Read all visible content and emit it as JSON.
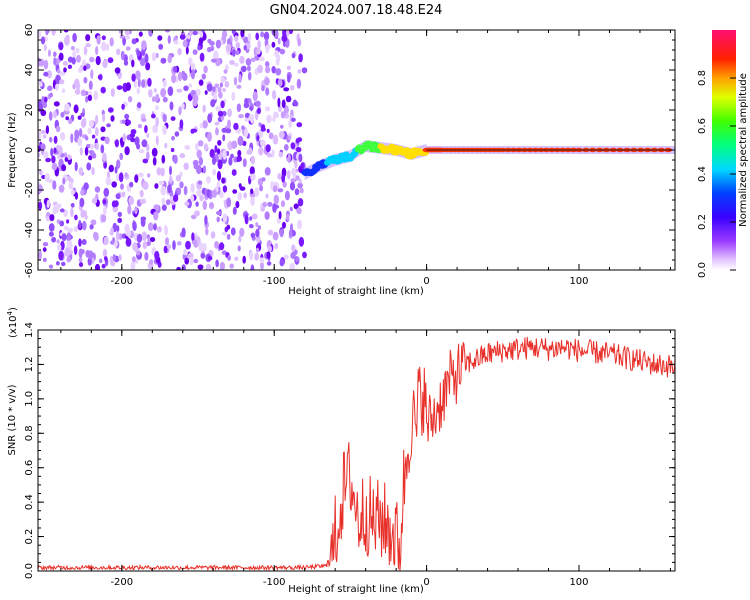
{
  "title": "GN04.2024.007.18.48.E24",
  "chart_data": [
    {
      "type": "heatmap",
      "xlabel": "Height of straight line (km)",
      "ylabel": "Frequency (Hz)",
      "xlim": [
        -255,
        163
      ],
      "ylim": [
        -60,
        60
      ],
      "xticks": [
        -200,
        -100,
        0,
        100
      ],
      "xtick_labels": [
        "-200",
        "-100",
        "0",
        "100"
      ],
      "yticks": [
        -60,
        -40,
        -20,
        0,
        20,
        40,
        60
      ],
      "ytick_labels": [
        "-60",
        "-40",
        "-20",
        "0",
        "20",
        "40",
        "60"
      ],
      "noise_region_x": [
        -255,
        -80
      ],
      "signal_track": {
        "x": [
          -80,
          -70,
          -60,
          -50,
          -40,
          -30,
          -20,
          -10,
          0,
          10,
          50,
          100,
          163
        ],
        "frequency": [
          -12,
          -8,
          -5,
          -3,
          2,
          1,
          0,
          -2,
          0,
          0,
          0,
          0,
          0
        ],
        "normalized_amplitude": [
          0.3,
          0.35,
          0.45,
          0.5,
          0.6,
          0.7,
          0.75,
          0.8,
          0.85,
          0.9,
          0.95,
          0.95,
          0.95
        ]
      },
      "colorbar": {
        "label": "Normalized spectral amplitude",
        "range": [
          0.0,
          1.0
        ],
        "ticks": [
          0.0,
          0.2,
          0.4,
          0.6,
          0.8
        ],
        "tick_labels": [
          "0.0",
          "0.2",
          "0.4",
          "0.6",
          "0.8"
        ],
        "colors": [
          "#ffffff",
          "#d9a6ff",
          "#7a00ff",
          "#0000ff",
          "#00ffff",
          "#00ff00",
          "#ffff00",
          "#ff8000",
          "#ff0000",
          "#ff0080"
        ]
      }
    },
    {
      "type": "line",
      "xlabel": "Height of straight line (km)",
      "ylabel": "SNR (10 * v/v)",
      "y_scale_note": "(x10",
      "y_scale_exp": "4",
      "xlim": [
        -255,
        163
      ],
      "ylim": [
        0.0,
        1.4
      ],
      "xticks": [
        -200,
        -100,
        0,
        100
      ],
      "xtick_labels": [
        "-200",
        "-100",
        "0",
        "100"
      ],
      "yticks": [
        0.0,
        0.2,
        0.4,
        0.6,
        0.8,
        1.0,
        1.2,
        1.4
      ],
      "ytick_labels": [
        "0.0",
        "0.2",
        "0.4",
        "0.6",
        "0.8",
        "1.0",
        "1.2",
        "1.4"
      ],
      "color": "#e8302a",
      "series": [
        {
          "x": [
            -255,
            -200,
            -150,
            -100,
            -80,
            -65,
            -62,
            -60,
            -55,
            -50,
            -45,
            -40,
            -35,
            -30,
            -25,
            -20,
            -18,
            -15,
            -12,
            -10,
            -7,
            -5,
            -2,
            0,
            5,
            10,
            15,
            20,
            25,
            30,
            40,
            50,
            60,
            70,
            80,
            90,
            100,
            110,
            120,
            130,
            140,
            150,
            160,
            163
          ],
          "y": [
            0.02,
            0.02,
            0.02,
            0.02,
            0.02,
            0.03,
            0.08,
            0.2,
            0.45,
            0.55,
            0.3,
            0.35,
            0.28,
            0.3,
            0.25,
            0.2,
            0.1,
            0.5,
            0.75,
            0.9,
            0.8,
            1.0,
            1.05,
            0.85,
            0.9,
            1.0,
            1.1,
            1.15,
            1.2,
            1.22,
            1.26,
            1.28,
            1.29,
            1.3,
            1.29,
            1.3,
            1.28,
            1.27,
            1.26,
            1.24,
            1.22,
            1.2,
            1.19,
            1.18
          ]
        }
      ]
    }
  ]
}
